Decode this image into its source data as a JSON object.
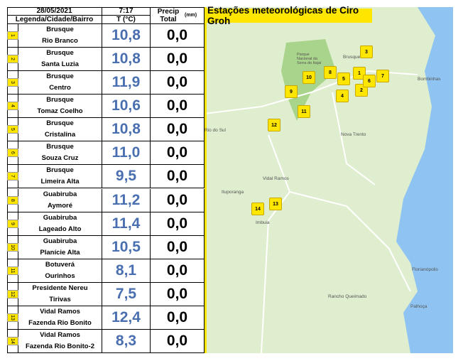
{
  "header": {
    "date": "28/05/2021",
    "time": "7:17",
    "precip": "Precip Total",
    "unit": "(mm)",
    "col_name": "Legenda/Cidade/Bairro",
    "col_temp": "T (°C)"
  },
  "map": {
    "title": "Estações meteorológicas de Ciro Groh",
    "places": [
      "Brusque",
      "Parque Nacional da Serra do Itajaí",
      "Bombinhas",
      "Nova Trento",
      "Vidal Ramos",
      "Ituporanga",
      "Rio do Sul",
      "Imbuia",
      "Florianópolis",
      "Palhoça",
      "Rancho Queimado"
    ],
    "markers": [
      "1",
      "2",
      "3",
      "4",
      "5",
      "6",
      "7",
      "8",
      "9",
      "10",
      "11",
      "12",
      "13",
      "14"
    ]
  },
  "table": {
    "rows": [
      {
        "num": "1",
        "city": "Brusque",
        "bairro": "Rio Branco",
        "temp": "10,8",
        "precip": "0,0"
      },
      {
        "num": "2",
        "city": "Brusque",
        "bairro": "Santa Luzia",
        "temp": "10,8",
        "precip": "0,0"
      },
      {
        "num": "3",
        "city": "Brusque",
        "bairro": "Centro",
        "temp": "11,9",
        "precip": "0,0"
      },
      {
        "num": "4",
        "city": "Brusque",
        "bairro": "Tomaz Coelho",
        "temp": "10,6",
        "precip": "0,0"
      },
      {
        "num": "5",
        "city": "Brusque",
        "bairro": "Cristalina",
        "temp": "10,8",
        "precip": "0,0"
      },
      {
        "num": "6",
        "city": "Brusque",
        "bairro": "Souza Cruz",
        "temp": "11,0",
        "precip": "0,0"
      },
      {
        "num": "7",
        "city": "Brusque",
        "bairro": "Limeira Alta",
        "temp": "9,5",
        "precip": "0,0"
      },
      {
        "num": "8",
        "city": "Guabiruba",
        "bairro": "Aymoré",
        "temp": "11,2",
        "precip": "0,0"
      },
      {
        "num": "9",
        "city": "Guabiruba",
        "bairro": "Lageado Alto",
        "temp": "11,4",
        "precip": "0,0"
      },
      {
        "num": "10",
        "city": "Guabiruba",
        "bairro": "Planície Alta",
        "temp": "10,5",
        "precip": "0,0"
      },
      {
        "num": "11",
        "city": "Botuverá",
        "bairro": "Ourinhos",
        "temp": "8,1",
        "precip": "0,0"
      },
      {
        "num": "12",
        "city": "Presidente Nereu",
        "bairro": "Tirivas",
        "temp": "7,5",
        "precip": "0,0"
      },
      {
        "num": "13",
        "city": "Vidal Ramos",
        "bairro": "Fazenda Rio Bonito",
        "temp": "12,4",
        "precip": "0,0"
      },
      {
        "num": "14",
        "city": "Vidal Ramos",
        "bairro": "Fazenda Rio Bonito-2",
        "temp": "8,3",
        "precip": "0,0"
      }
    ]
  }
}
